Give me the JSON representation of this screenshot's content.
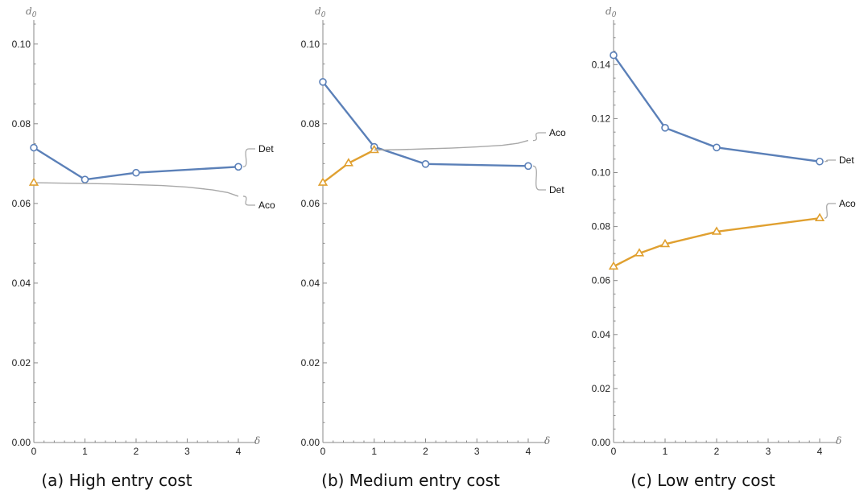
{
  "chart_data": [
    {
      "type": "line",
      "title": "(a) High entry cost",
      "ylabel": "d",
      "ylabel_sub": "0",
      "xlabel": "δ",
      "xlim": [
        0,
        4
      ],
      "ylim": [
        0,
        0.105
      ],
      "xticks": [
        0,
        1,
        2,
        3,
        4
      ],
      "yticks": [
        0.0,
        0.02,
        0.04,
        0.06,
        0.08,
        0.1
      ],
      "ytick_labels": [
        "0.00",
        "0.02",
        "0.04",
        "0.06",
        "0.08",
        "0.10"
      ],
      "series": [
        {
          "name": "Det",
          "color": "#5b80b8",
          "marker": "circle",
          "x": [
            0,
            1,
            2,
            4
          ],
          "y": [
            0.074,
            0.066,
            0.0677,
            0.0692
          ]
        },
        {
          "name": "Aco",
          "color": "#a8a8a8",
          "marker": "none",
          "x": [
            0,
            0.5,
            1,
            1.5,
            2,
            2.5,
            3,
            3.5,
            3.8,
            4
          ],
          "y": [
            0.0652,
            0.0651,
            0.065,
            0.0649,
            0.0647,
            0.0645,
            0.0641,
            0.0634,
            0.0627,
            0.0618
          ]
        },
        {
          "name": "",
          "color": "#e0a030",
          "marker": "triangle",
          "x": [
            0
          ],
          "y": [
            0.0652
          ]
        }
      ]
    },
    {
      "type": "line",
      "title": "(b) Medium entry cost",
      "ylabel": "d",
      "ylabel_sub": "0",
      "xlabel": "δ",
      "xlim": [
        0,
        4
      ],
      "ylim": [
        0,
        0.105
      ],
      "xticks": [
        0,
        1,
        2,
        3,
        4
      ],
      "yticks": [
        0.0,
        0.02,
        0.04,
        0.06,
        0.08,
        0.1
      ],
      "ytick_labels": [
        "0.00",
        "0.02",
        "0.04",
        "0.06",
        "0.08",
        "0.10"
      ],
      "series": [
        {
          "name": "Det",
          "color": "#5b80b8",
          "marker": "circle",
          "x": [
            0,
            1,
            2,
            4
          ],
          "y": [
            0.0905,
            0.0742,
            0.0699,
            0.0694
          ]
        },
        {
          "name": "",
          "color": "#e0a030",
          "marker": "triangle",
          "x": [
            0,
            0.5,
            1
          ],
          "y": [
            0.0652,
            0.0701,
            0.0734
          ]
        },
        {
          "name": "Aco",
          "color": "#a8a8a8",
          "marker": "none",
          "x": [
            1,
            1.5,
            2,
            2.5,
            3,
            3.5,
            3.8,
            4
          ],
          "y": [
            0.0734,
            0.0735,
            0.0737,
            0.0739,
            0.0742,
            0.0746,
            0.0751,
            0.0758
          ]
        }
      ]
    },
    {
      "type": "line",
      "title": "(c) Low entry cost",
      "ylabel": "d",
      "ylabel_sub": "0",
      "xlabel": "δ",
      "xlim": [
        0,
        4
      ],
      "ylim": [
        0,
        0.155
      ],
      "xticks": [
        0,
        1,
        2,
        3,
        4
      ],
      "yticks": [
        0.0,
        0.02,
        0.04,
        0.06,
        0.08,
        0.1,
        0.12,
        0.14
      ],
      "ytick_labels": [
        "0.00",
        "0.02",
        "0.04",
        "0.06",
        "0.08",
        "0.10",
        "0.12",
        "0.14"
      ],
      "series": [
        {
          "name": "Det",
          "color": "#5b80b8",
          "marker": "circle",
          "x": [
            0,
            1,
            2,
            4
          ],
          "y": [
            0.1435,
            0.1166,
            0.1093,
            0.1041
          ]
        },
        {
          "name": "Aco",
          "color": "#e0a030",
          "marker": "triangle",
          "x": [
            0,
            0.5,
            1,
            2,
            4
          ],
          "y": [
            0.0652,
            0.0701,
            0.0735,
            0.0781,
            0.0831
          ]
        }
      ]
    }
  ]
}
